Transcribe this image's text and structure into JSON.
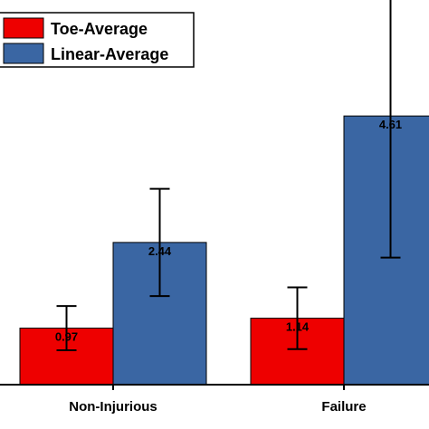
{
  "chart_data": {
    "type": "bar",
    "categories": [
      "Non-Injurious",
      "Failure"
    ],
    "series": [
      {
        "name": "Toe-Average",
        "color": "#ee0000",
        "values": [
          0.97,
          1.14
        ],
        "error": [
          0.38,
          0.53
        ]
      },
      {
        "name": "Linear-Average",
        "color": "#3a66a3",
        "values": [
          2.44,
          4.61
        ],
        "error": [
          0.92,
          2.43
        ]
      }
    ],
    "ylim": [
      0,
      6.6
    ],
    "value_labels": [
      "0.97",
      "2.44",
      "1.14",
      "4.61"
    ],
    "legend_position": "top-left",
    "grid": false
  }
}
